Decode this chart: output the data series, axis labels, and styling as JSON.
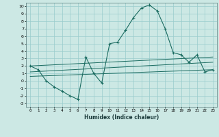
{
  "title": "",
  "xlabel": "Humidex (Indice chaleur)",
  "ylabel": "",
  "background_color": "#cce8e4",
  "grid_color": "#99cccc",
  "line_color": "#1a6b60",
  "xlim": [
    -0.5,
    23.5
  ],
  "ylim": [
    -3.5,
    10.5
  ],
  "xticks": [
    0,
    1,
    2,
    3,
    4,
    5,
    6,
    7,
    8,
    9,
    10,
    11,
    12,
    13,
    14,
    15,
    16,
    17,
    18,
    19,
    20,
    21,
    22,
    23
  ],
  "yticks": [
    -3,
    -2,
    -1,
    0,
    1,
    2,
    3,
    4,
    5,
    6,
    7,
    8,
    9,
    10
  ],
  "series": [
    [
      0,
      2.0
    ],
    [
      1,
      1.5
    ],
    [
      2,
      0.0
    ],
    [
      3,
      -0.8
    ],
    [
      4,
      -1.4
    ],
    [
      5,
      -2.0
    ],
    [
      6,
      -2.5
    ],
    [
      7,
      3.2
    ],
    [
      8,
      1.0
    ],
    [
      9,
      -0.3
    ],
    [
      10,
      5.0
    ],
    [
      11,
      5.2
    ],
    [
      12,
      6.8
    ],
    [
      13,
      8.5
    ],
    [
      14,
      9.8
    ],
    [
      15,
      10.2
    ],
    [
      16,
      9.4
    ],
    [
      17,
      7.0
    ],
    [
      18,
      3.8
    ],
    [
      19,
      3.5
    ],
    [
      20,
      2.5
    ],
    [
      21,
      3.5
    ],
    [
      22,
      1.2
    ],
    [
      23,
      1.5
    ]
  ],
  "linear1": [
    [
      0,
      2.0
    ],
    [
      23,
      3.2
    ]
  ],
  "linear2": [
    [
      0,
      1.2
    ],
    [
      23,
      2.5
    ]
  ],
  "linear3": [
    [
      0,
      0.6
    ],
    [
      23,
      1.5
    ]
  ]
}
